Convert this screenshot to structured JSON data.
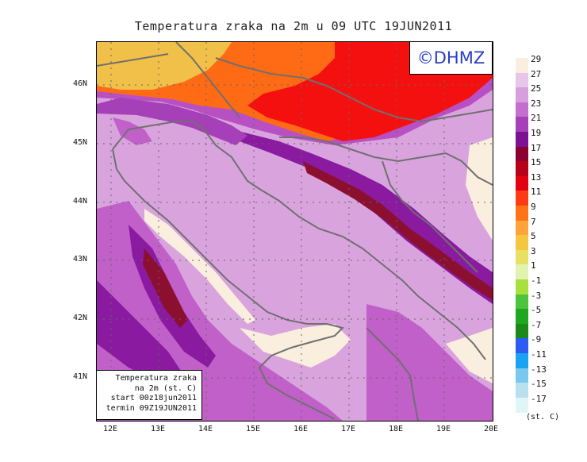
{
  "title": "Temperatura zraka na 2m u 09 UTC 19JUN2011",
  "logo_text": "©DHMZ",
  "info_box": [
    "Temperatura zraka",
    "na 2m (st. C)",
    "start 00z18jun2011",
    "termin 09Z19JUN2011"
  ],
  "lat_labels": [
    "46N",
    "45N",
    "44N",
    "43N",
    "42N",
    "41N"
  ],
  "lon_labels": [
    "12E",
    "13E",
    "14E",
    "15E",
    "16E",
    "17E",
    "18E",
    "19E",
    "20E"
  ],
  "colorbar": {
    "unit": "(st. C)",
    "levels": [
      "29",
      "27",
      "25",
      "23",
      "21",
      "19",
      "17",
      "15",
      "13",
      "11",
      "9",
      "7",
      "5",
      "3",
      "1",
      "-1",
      "-3",
      "-5",
      "-7",
      "-9",
      "-11",
      "-13",
      "-15",
      "-17"
    ],
    "colors": [
      "#fbeee0",
      "#e8c6ea",
      "#d79fdc",
      "#c46fd0",
      "#a640b8",
      "#7e1093",
      "#8b0030",
      "#b8001a",
      "#e30010",
      "#ff3a14",
      "#ff7316",
      "#ffa33a",
      "#f5c640",
      "#e8e060",
      "#e2f2b0",
      "#a8e040",
      "#4cc43c",
      "#1fa81f",
      "#1a8a1a",
      "#2f5bf5",
      "#1aa3f0",
      "#78c8ef",
      "#b8e0ee",
      "#e0f6f6"
    ]
  },
  "map_colors": {
    "light_pink": "#d9a4de",
    "cream": "#faeede",
    "purple": "#c060c8",
    "dark_purple": "#8a1aa0",
    "maroon": "#8b1030",
    "red": "#f51010",
    "orange": "#ff6a14",
    "light_orange": "#ffa33a",
    "coast": "#707070"
  }
}
